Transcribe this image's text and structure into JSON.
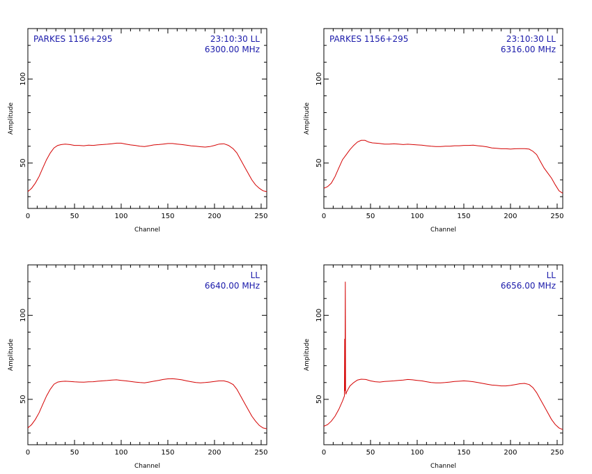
{
  "chart_data": [
    {
      "type": "line",
      "xlabel": "Channel",
      "ylabel": "Amplitude",
      "xlim": [
        0,
        256
      ],
      "ylim": [
        23,
        130
      ],
      "xticks": [
        0,
        50,
        100,
        150,
        200,
        250
      ],
      "yticks": [
        50,
        100
      ],
      "annotations": {
        "source": "PARKES 1156+295",
        "time_pol": "23:10:30  LL",
        "frequency": "6300.00 MHz"
      },
      "series": [
        {
          "x": [
            0,
            4,
            8,
            12,
            16,
            20,
            24,
            28,
            32,
            36,
            40,
            45,
            50,
            55,
            60,
            65,
            70,
            75,
            80,
            85,
            90,
            95,
            100,
            105,
            110,
            115,
            120,
            125,
            130,
            135,
            140,
            145,
            150,
            155,
            160,
            165,
            170,
            175,
            180,
            185,
            190,
            195,
            200,
            205,
            210,
            215,
            220,
            224,
            228,
            232,
            236,
            240,
            244,
            248,
            252,
            256
          ],
          "y": [
            33,
            35,
            38,
            42,
            47,
            52,
            56,
            59,
            60.5,
            61,
            61.3,
            61,
            60.5,
            60.5,
            60.3,
            60.6,
            60.5,
            60.8,
            61,
            61.2,
            61.5,
            61.8,
            61.8,
            61.3,
            60.8,
            60.5,
            60,
            59.8,
            60.3,
            60.8,
            61,
            61.3,
            61.6,
            61.6,
            61.3,
            61,
            60.6,
            60.2,
            60,
            59.7,
            59.5,
            59.8,
            60.5,
            61.3,
            61.5,
            60.5,
            58.5,
            56,
            52,
            48,
            44,
            40,
            37,
            35,
            33.5,
            33
          ]
        }
      ]
    },
    {
      "type": "line",
      "xlabel": "Channel",
      "ylabel": "Amplitude",
      "xlim": [
        0,
        256
      ],
      "ylim": [
        23,
        130
      ],
      "xticks": [
        0,
        50,
        100,
        150,
        200,
        250
      ],
      "yticks": [
        50,
        100
      ],
      "annotations": {
        "source": "PARKES 1156+295",
        "time_pol": "23:10:30  LL",
        "frequency": "6316.00 MHz"
      },
      "series": [
        {
          "x": [
            0,
            4,
            8,
            12,
            16,
            20,
            24,
            28,
            32,
            36,
            40,
            44,
            48,
            52,
            56,
            60,
            65,
            70,
            75,
            80,
            85,
            90,
            95,
            100,
            105,
            110,
            115,
            120,
            125,
            130,
            135,
            140,
            145,
            150,
            155,
            160,
            165,
            170,
            175,
            180,
            185,
            190,
            195,
            200,
            205,
            210,
            215,
            220,
            224,
            228,
            232,
            236,
            240,
            244,
            248,
            252,
            256
          ],
          "y": [
            35,
            36,
            38,
            42,
            47,
            52,
            55,
            58,
            60.5,
            62.5,
            63.5,
            63.5,
            62.5,
            62,
            61.8,
            61.6,
            61.3,
            61.3,
            61.5,
            61.3,
            61,
            61.2,
            61,
            60.8,
            60.6,
            60.3,
            60,
            59.8,
            59.8,
            60,
            60,
            60.3,
            60.3,
            60.5,
            60.5,
            60.6,
            60.3,
            60,
            59.6,
            59,
            58.8,
            58.5,
            58.5,
            58.3,
            58.5,
            58.6,
            58.6,
            58.3,
            57,
            55,
            51,
            47,
            44,
            41,
            37,
            33.5,
            32
          ]
        }
      ]
    },
    {
      "type": "line",
      "xlabel": "Channel",
      "ylabel": "Amplitude",
      "xlim": [
        0,
        256
      ],
      "ylim": [
        23,
        130
      ],
      "xticks": [
        0,
        50,
        100,
        150,
        200,
        250
      ],
      "yticks": [
        50,
        100
      ],
      "annotations": {
        "source": "",
        "time_pol": "LL",
        "frequency": "6640.00 MHz"
      },
      "series": [
        {
          "x": [
            0,
            4,
            8,
            12,
            16,
            20,
            24,
            28,
            32,
            36,
            40,
            45,
            50,
            55,
            60,
            65,
            70,
            75,
            80,
            85,
            90,
            95,
            100,
            105,
            110,
            115,
            120,
            125,
            130,
            135,
            140,
            145,
            150,
            155,
            160,
            165,
            170,
            175,
            180,
            185,
            190,
            195,
            200,
            205,
            210,
            215,
            220,
            224,
            228,
            232,
            236,
            240,
            244,
            248,
            252,
            256
          ],
          "y": [
            33,
            35,
            38,
            42,
            47,
            52,
            56,
            59,
            60.3,
            60.6,
            60.8,
            60.6,
            60.4,
            60.3,
            60.2,
            60.4,
            60.5,
            60.8,
            61,
            61.2,
            61.5,
            61.6,
            61.3,
            61,
            60.6,
            60.3,
            60,
            59.8,
            60.3,
            60.8,
            61.3,
            61.8,
            62.2,
            62.3,
            62,
            61.6,
            61,
            60.5,
            60,
            59.8,
            60,
            60.3,
            60.6,
            61,
            61,
            60.3,
            58.8,
            56,
            52,
            48,
            44,
            40,
            37,
            34.5,
            33,
            32.5
          ]
        }
      ]
    },
    {
      "type": "line",
      "xlabel": "Channel",
      "ylabel": "Amplitude",
      "xlim": [
        0,
        256
      ],
      "ylim": [
        23,
        130
      ],
      "xticks": [
        0,
        50,
        100,
        150,
        200,
        250
      ],
      "yticks": [
        50,
        100
      ],
      "annotations": {
        "source": "",
        "time_pol": "LL",
        "frequency": "6656.00 MHz"
      },
      "series": [
        {
          "x": [
            0,
            4,
            8,
            12,
            16,
            20,
            22,
            22.3,
            22.6,
            23,
            23.3,
            23.6,
            24,
            26,
            28,
            32,
            36,
            40,
            45,
            50,
            55,
            60,
            65,
            70,
            75,
            80,
            85,
            90,
            95,
            100,
            105,
            110,
            115,
            120,
            125,
            130,
            135,
            140,
            145,
            150,
            155,
            160,
            165,
            170,
            175,
            180,
            185,
            190,
            195,
            200,
            205,
            210,
            215,
            220,
            224,
            228,
            232,
            236,
            240,
            244,
            248,
            252,
            256
          ],
          "y": [
            34,
            35,
            37,
            40,
            44,
            49,
            52,
            86,
            55,
            120,
            55,
            53,
            54,
            56,
            58,
            60,
            61.5,
            62,
            61.8,
            61,
            60.5,
            60.3,
            60.6,
            60.8,
            61,
            61.3,
            61.5,
            61.8,
            61.6,
            61.3,
            61,
            60.5,
            60,
            59.8,
            59.8,
            60,
            60.3,
            60.6,
            60.8,
            61,
            60.8,
            60.5,
            60,
            59.5,
            59,
            58.5,
            58.3,
            58,
            58,
            58.3,
            58.8,
            59.3,
            59.5,
            58.8,
            57,
            54,
            50,
            46,
            42,
            38,
            35,
            33,
            32
          ]
        }
      ]
    }
  ]
}
